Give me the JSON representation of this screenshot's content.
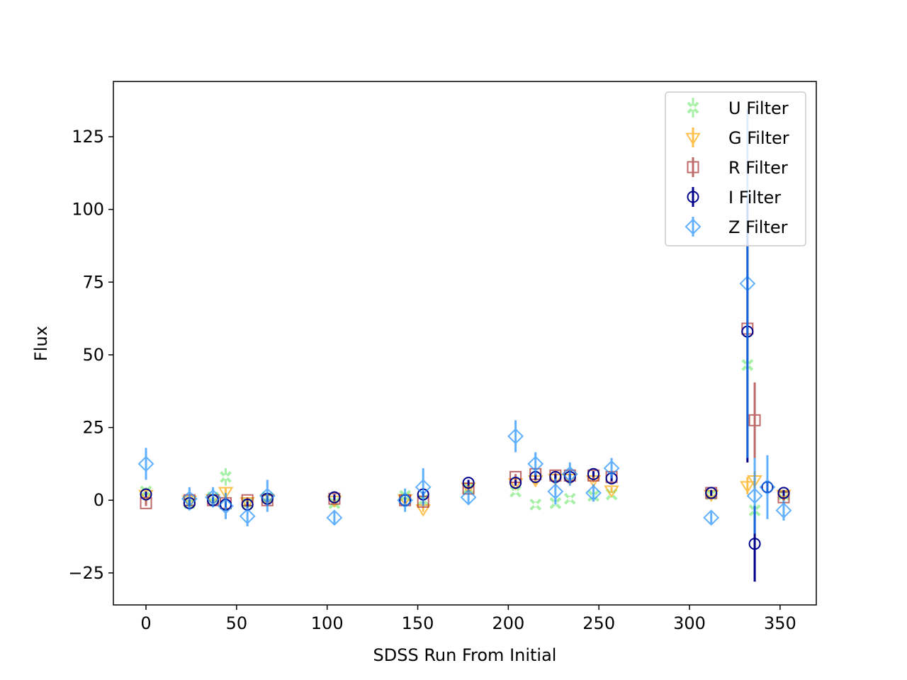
{
  "chart_data": {
    "type": "scatter",
    "title": "",
    "xlabel": "SDSS Run From Initial",
    "ylabel": "Flux",
    "xlim": [
      -18,
      370
    ],
    "ylim": [
      -36,
      144
    ],
    "xticks": [
      0,
      50,
      100,
      150,
      200,
      250,
      300,
      350
    ],
    "yticks": [
      -25,
      0,
      25,
      50,
      75,
      100,
      125
    ],
    "grid": false,
    "legend_position": "top-right",
    "series": [
      {
        "name": "U Filter",
        "marker": "x-circle",
        "color": "#90ee90",
        "points": [
          {
            "x": 0,
            "y": 3,
            "err": 1.5
          },
          {
            "x": 24,
            "y": -1,
            "err": 1
          },
          {
            "x": 37,
            "y": 1,
            "err": 1
          },
          {
            "x": 44,
            "y": 8,
            "err": 3
          },
          {
            "x": 56,
            "y": -1,
            "err": 1
          },
          {
            "x": 67,
            "y": 1,
            "err": 1
          },
          {
            "x": 104,
            "y": -1,
            "err": 1
          },
          {
            "x": 143,
            "y": 1.5,
            "err": 1
          },
          {
            "x": 153,
            "y": 0,
            "err": 1
          },
          {
            "x": 178,
            "y": 4,
            "err": 1
          },
          {
            "x": 204,
            "y": 3,
            "err": 1
          },
          {
            "x": 215,
            "y": -1.5,
            "err": 1
          },
          {
            "x": 226,
            "y": -1,
            "err": 1
          },
          {
            "x": 234,
            "y": 0.5,
            "err": 1
          },
          {
            "x": 247,
            "y": 1.5,
            "err": 1
          },
          {
            "x": 257,
            "y": 2,
            "err": 1
          },
          {
            "x": 312,
            "y": 2,
            "err": 1
          },
          {
            "x": 332,
            "y": 46.5,
            "err": 2
          },
          {
            "x": 336,
            "y": -3.5,
            "err": 2
          },
          {
            "x": 352,
            "y": 2,
            "err": 1
          }
        ]
      },
      {
        "name": "G Filter",
        "marker": "triangle-down",
        "color": "#ffa500",
        "points": [
          {
            "x": 0,
            "y": 2,
            "err": 1
          },
          {
            "x": 24,
            "y": 0,
            "err": 1
          },
          {
            "x": 37,
            "y": 0.5,
            "err": 1
          },
          {
            "x": 44,
            "y": 3,
            "err": 1.5
          },
          {
            "x": 56,
            "y": -0.5,
            "err": 1
          },
          {
            "x": 67,
            "y": 0.5,
            "err": 1
          },
          {
            "x": 104,
            "y": 0,
            "err": 1
          },
          {
            "x": 143,
            "y": 0.5,
            "err": 1
          },
          {
            "x": 153,
            "y": -3,
            "err": 1
          },
          {
            "x": 178,
            "y": 4.5,
            "err": 1
          },
          {
            "x": 204,
            "y": 6,
            "err": 1
          },
          {
            "x": 215,
            "y": 7,
            "err": 1.5
          },
          {
            "x": 226,
            "y": 7.5,
            "err": 1
          },
          {
            "x": 234,
            "y": 7.5,
            "err": 1
          },
          {
            "x": 247,
            "y": 7,
            "err": 1
          },
          {
            "x": 257,
            "y": 3.5,
            "err": 1
          },
          {
            "x": 312,
            "y": 2,
            "err": 1
          },
          {
            "x": 332,
            "y": 5,
            "err": 3
          },
          {
            "x": 336,
            "y": 7,
            "err": 3
          },
          {
            "x": 352,
            "y": 2,
            "err": 1
          }
        ]
      },
      {
        "name": "R Filter",
        "marker": "square",
        "color": "#a52a2a",
        "points": [
          {
            "x": 0,
            "y": -1,
            "err": 1
          },
          {
            "x": 24,
            "y": 0,
            "err": 1
          },
          {
            "x": 37,
            "y": 0,
            "err": 1
          },
          {
            "x": 44,
            "y": -1,
            "err": 1
          },
          {
            "x": 56,
            "y": 0,
            "err": 1
          },
          {
            "x": 67,
            "y": 0,
            "err": 1
          },
          {
            "x": 104,
            "y": 0.5,
            "err": 1
          },
          {
            "x": 143,
            "y": 0,
            "err": 1
          },
          {
            "x": 153,
            "y": -0.5,
            "err": 1
          },
          {
            "x": 178,
            "y": 4,
            "err": 1
          },
          {
            "x": 204,
            "y": 8,
            "err": 1
          },
          {
            "x": 215,
            "y": 9,
            "err": 1
          },
          {
            "x": 226,
            "y": 8.5,
            "err": 1
          },
          {
            "x": 234,
            "y": 8.5,
            "err": 1
          },
          {
            "x": 247,
            "y": 8.5,
            "err": 1
          },
          {
            "x": 257,
            "y": 8,
            "err": 1
          },
          {
            "x": 312,
            "y": 2.5,
            "err": 1
          },
          {
            "x": 332,
            "y": 59,
            "err": 3
          },
          {
            "x": 336,
            "y": 27.5,
            "err": 13
          },
          {
            "x": 352,
            "y": 1,
            "err": 1
          }
        ]
      },
      {
        "name": "I Filter",
        "marker": "circle",
        "color": "#00008b",
        "points": [
          {
            "x": 0,
            "y": 2,
            "err": 1
          },
          {
            "x": 24,
            "y": -1,
            "err": 1
          },
          {
            "x": 37,
            "y": 0,
            "err": 1
          },
          {
            "x": 44,
            "y": -1.5,
            "err": 1
          },
          {
            "x": 56,
            "y": -1.5,
            "err": 1
          },
          {
            "x": 67,
            "y": 0.5,
            "err": 1
          },
          {
            "x": 104,
            "y": 1,
            "err": 1
          },
          {
            "x": 143,
            "y": 0,
            "err": 1
          },
          {
            "x": 153,
            "y": 2,
            "err": 1
          },
          {
            "x": 178,
            "y": 6,
            "err": 1
          },
          {
            "x": 204,
            "y": 6,
            "err": 1
          },
          {
            "x": 215,
            "y": 8,
            "err": 1
          },
          {
            "x": 226,
            "y": 8,
            "err": 1
          },
          {
            "x": 234,
            "y": 8,
            "err": 1
          },
          {
            "x": 247,
            "y": 9,
            "err": 1
          },
          {
            "x": 257,
            "y": 7.5,
            "err": 1
          },
          {
            "x": 312,
            "y": 2.5,
            "err": 1
          },
          {
            "x": 332,
            "y": 58,
            "err": 45
          },
          {
            "x": 336,
            "y": -15,
            "err": 13
          },
          {
            "x": 343,
            "y": 4.5,
            "err": 2
          },
          {
            "x": 352,
            "y": 2.5,
            "err": 1
          }
        ]
      },
      {
        "name": "Z Filter",
        "marker": "diamond",
        "color": "#1e90ff",
        "points": [
          {
            "x": 0,
            "y": 12.5,
            "err": 5.5
          },
          {
            "x": 24,
            "y": 0.5,
            "err": 4
          },
          {
            "x": 37,
            "y": 1,
            "err": 3.5
          },
          {
            "x": 44,
            "y": -2,
            "err": 4.5
          },
          {
            "x": 56,
            "y": -5.5,
            "err": 3.5
          },
          {
            "x": 67,
            "y": 1.5,
            "err": 5.5
          },
          {
            "x": 104,
            "y": -6,
            "err": 2.5
          },
          {
            "x": 143,
            "y": 0,
            "err": 4
          },
          {
            "x": 153,
            "y": 4.5,
            "err": 6.5
          },
          {
            "x": 178,
            "y": 1,
            "err": 2.5
          },
          {
            "x": 204,
            "y": 22,
            "err": 5.5
          },
          {
            "x": 215,
            "y": 12.5,
            "err": 4
          },
          {
            "x": 226,
            "y": 3,
            "err": 4.5
          },
          {
            "x": 234,
            "y": 9,
            "err": 4
          },
          {
            "x": 247,
            "y": 2.5,
            "err": 3
          },
          {
            "x": 257,
            "y": 11,
            "err": 3.5
          },
          {
            "x": 312,
            "y": -6,
            "err": 2
          },
          {
            "x": 332,
            "y": 74.5,
            "err": 60
          },
          {
            "x": 336,
            "y": 1.5,
            "err": 13
          },
          {
            "x": 343,
            "y": 4.5,
            "err": 11
          },
          {
            "x": 352,
            "y": -3.5,
            "err": 3.5
          }
        ]
      }
    ]
  }
}
